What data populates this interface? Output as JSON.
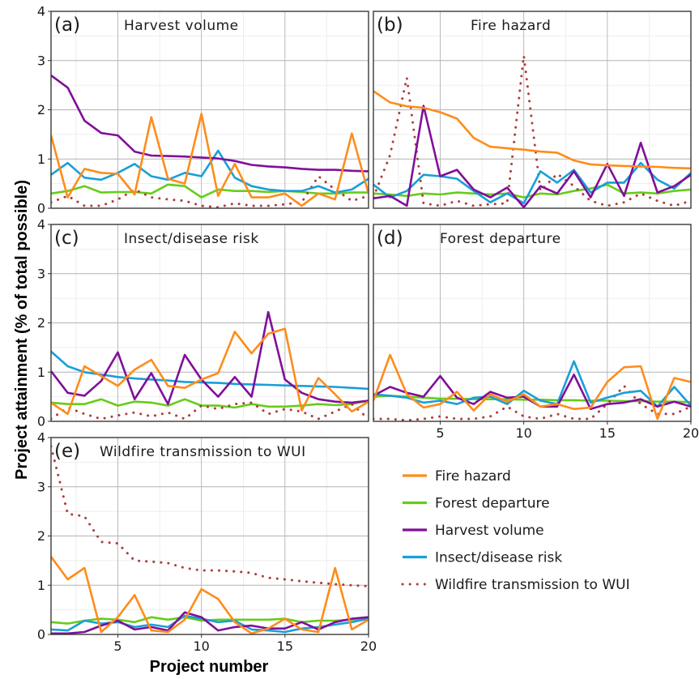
{
  "chart_data": {
    "type": "line",
    "xlabel": "Project number",
    "ylabel": "Project attainment (% of total possible)",
    "xlim": [
      1,
      20
    ],
    "ylim": [
      0,
      4
    ],
    "x_ticks": [
      5,
      10,
      15,
      20
    ],
    "y_ticks": [
      0,
      1,
      2,
      3,
      4
    ],
    "x": [
      1,
      2,
      3,
      4,
      5,
      6,
      7,
      8,
      9,
      10,
      11,
      12,
      13,
      14,
      15,
      16,
      17,
      18,
      19,
      20
    ],
    "colors": {
      "Fire hazard": "#ff8c1a",
      "Forest departure": "#66cc1a",
      "Harvest volume": "#800f99",
      "Insect/disease risk": "#1a9ed9",
      "Wildfire transmission to WUI": "#b03a3a"
    },
    "legend": [
      {
        "name": "Fire hazard",
        "style": "solid"
      },
      {
        "name": "Forest departure",
        "style": "solid"
      },
      {
        "name": "Harvest volume",
        "style": "solid"
      },
      {
        "name": "Insect/disease risk",
        "style": "solid"
      },
      {
        "name": "Wildfire transmission to WUI",
        "style": "dotted"
      }
    ],
    "panels": [
      {
        "label": "(a)",
        "title": "Harvest volume",
        "show_x_ticks": false,
        "show_y_ticks": true,
        "series": [
          {
            "name": "Fire hazard",
            "values": [
              1.48,
              0.22,
              0.8,
              0.72,
              0.7,
              0.28,
              1.85,
              0.6,
              0.5,
              1.92,
              0.25,
              0.9,
              0.22,
              0.22,
              0.3,
              0.05,
              0.3,
              0.18,
              1.52,
              0.3
            ]
          },
          {
            "name": "Forest departure",
            "values": [
              0.3,
              0.35,
              0.45,
              0.32,
              0.33,
              0.33,
              0.3,
              0.48,
              0.45,
              0.22,
              0.38,
              0.35,
              0.35,
              0.33,
              0.35,
              0.33,
              0.3,
              0.3,
              0.32,
              0.32
            ]
          },
          {
            "name": "Harvest volume",
            "values": [
              2.7,
              2.45,
              1.78,
              1.53,
              1.48,
              1.15,
              1.07,
              1.06,
              1.05,
              1.03,
              1.01,
              0.96,
              0.88,
              0.85,
              0.83,
              0.8,
              0.78,
              0.78,
              0.76,
              0.75
            ]
          },
          {
            "name": "Insect/disease risk",
            "values": [
              0.68,
              0.92,
              0.62,
              0.58,
              0.72,
              0.9,
              0.65,
              0.58,
              0.72,
              0.65,
              1.17,
              0.62,
              0.45,
              0.38,
              0.35,
              0.35,
              0.45,
              0.32,
              0.38,
              0.6
            ]
          },
          {
            "name": "Wildfire transmission to WUI",
            "values": [
              0.12,
              0.25,
              0.05,
              0.05,
              0.18,
              0.38,
              0.22,
              0.18,
              0.15,
              0.05,
              0.02,
              0.1,
              0.05,
              0.05,
              0.08,
              0.12,
              0.65,
              0.38,
              0.15,
              0.25
            ]
          }
        ]
      },
      {
        "label": "(b)",
        "title": "Fire hazard",
        "show_x_ticks": false,
        "show_y_ticks": false,
        "series": [
          {
            "name": "Fire hazard",
            "values": [
              2.38,
              2.15,
              2.07,
              2.04,
              1.95,
              1.82,
              1.43,
              1.25,
              1.22,
              1.19,
              1.15,
              1.13,
              0.97,
              0.89,
              0.87,
              0.86,
              0.85,
              0.84,
              0.82,
              0.81
            ]
          },
          {
            "name": "Forest departure",
            "values": [
              0.3,
              0.28,
              0.25,
              0.3,
              0.28,
              0.32,
              0.3,
              0.28,
              0.3,
              0.22,
              0.3,
              0.28,
              0.35,
              0.4,
              0.48,
              0.3,
              0.32,
              0.3,
              0.35,
              0.38
            ]
          },
          {
            "name": "Harvest volume",
            "values": [
              0.2,
              0.25,
              0.05,
              2.08,
              0.65,
              0.78,
              0.38,
              0.22,
              0.42,
              0.02,
              0.45,
              0.3,
              0.75,
              0.22,
              0.9,
              0.25,
              1.33,
              0.32,
              0.45,
              0.68
            ]
          },
          {
            "name": "Insect/disease risk",
            "values": [
              0.48,
              0.22,
              0.35,
              0.68,
              0.65,
              0.6,
              0.35,
              0.12,
              0.3,
              0.1,
              0.75,
              0.52,
              0.78,
              0.32,
              0.52,
              0.52,
              0.92,
              0.58,
              0.4,
              0.72
            ]
          },
          {
            "name": "Wildfire transmission to WUI",
            "values": [
              0.22,
              1.08,
              2.65,
              0.1,
              0.05,
              0.15,
              0.05,
              0.08,
              0.1,
              3.1,
              0.35,
              0.7,
              0.45,
              0.15,
              0.05,
              0.12,
              0.3,
              0.15,
              0.05,
              0.15
            ]
          }
        ]
      },
      {
        "label": "(c)",
        "title": "Insect/disease risk",
        "show_x_ticks": false,
        "show_y_ticks": true,
        "series": [
          {
            "name": "Fire hazard",
            "values": [
              0.38,
              0.15,
              1.12,
              0.92,
              0.72,
              1.05,
              1.25,
              0.72,
              0.68,
              0.85,
              0.98,
              1.82,
              1.38,
              1.78,
              1.88,
              0.22,
              0.88,
              0.55,
              0.2,
              0.4
            ]
          },
          {
            "name": "Forest departure",
            "values": [
              0.38,
              0.35,
              0.35,
              0.45,
              0.32,
              0.4,
              0.38,
              0.32,
              0.45,
              0.32,
              0.32,
              0.28,
              0.35,
              0.3,
              0.3,
              0.32,
              0.35,
              0.33,
              0.35,
              0.42
            ]
          },
          {
            "name": "Harvest volume",
            "values": [
              1.02,
              0.58,
              0.52,
              0.82,
              1.4,
              0.45,
              0.98,
              0.35,
              1.35,
              0.85,
              0.5,
              0.9,
              0.5,
              2.22,
              0.85,
              0.58,
              0.45,
              0.4,
              0.38,
              0.42
            ]
          },
          {
            "name": "Insect/disease risk",
            "values": [
              1.42,
              1.12,
              1.0,
              0.95,
              0.9,
              0.87,
              0.85,
              0.83,
              0.8,
              0.79,
              0.78,
              0.76,
              0.75,
              0.74,
              0.73,
              0.72,
              0.71,
              0.7,
              0.68,
              0.66
            ]
          },
          {
            "name": "Wildfire transmission to WUI",
            "values": [
              0.05,
              0.28,
              0.15,
              0.05,
              0.12,
              0.18,
              0.1,
              0.18,
              0.05,
              0.32,
              0.25,
              0.35,
              0.38,
              0.15,
              0.25,
              0.2,
              0.05,
              0.2,
              0.35,
              0.05
            ]
          }
        ]
      },
      {
        "label": "(d)",
        "title": "Forest departure",
        "show_x_ticks": true,
        "show_y_ticks": false,
        "series": [
          {
            "name": "Fire hazard",
            "values": [
              0.42,
              1.35,
              0.55,
              0.28,
              0.35,
              0.6,
              0.22,
              0.55,
              0.4,
              0.55,
              0.3,
              0.35,
              0.25,
              0.28,
              0.8,
              1.1,
              1.12,
              0.05,
              0.88,
              0.8
            ]
          },
          {
            "name": "Forest departure",
            "values": [
              0.5,
              0.52,
              0.5,
              0.48,
              0.46,
              0.46,
              0.45,
              0.45,
              0.45,
              0.44,
              0.44,
              0.43,
              0.43,
              0.42,
              0.42,
              0.41,
              0.41,
              0.4,
              0.4,
              0.39
            ]
          },
          {
            "name": "Harvest volume",
            "values": [
              0.52,
              0.7,
              0.58,
              0.5,
              0.92,
              0.48,
              0.35,
              0.6,
              0.48,
              0.5,
              0.3,
              0.3,
              0.95,
              0.25,
              0.35,
              0.38,
              0.45,
              0.3,
              0.4,
              0.3
            ]
          },
          {
            "name": "Insect/disease risk",
            "values": [
              0.55,
              0.52,
              0.48,
              0.38,
              0.42,
              0.35,
              0.48,
              0.5,
              0.35,
              0.62,
              0.42,
              0.35,
              1.22,
              0.38,
              0.48,
              0.58,
              0.62,
              0.3,
              0.7,
              0.32
            ]
          },
          {
            "name": "Wildfire transmission to WUI",
            "values": [
              0.05,
              0.05,
              0.02,
              0.05,
              0.1,
              0.05,
              0.05,
              0.1,
              0.3,
              0.1,
              0.05,
              0.15,
              0.05,
              0.05,
              0.35,
              0.72,
              0.35,
              0.15,
              0.15,
              0.3
            ]
          }
        ]
      },
      {
        "label": "(e)",
        "title": "Wildfire transmission to WUI",
        "show_x_ticks": true,
        "show_y_ticks": true,
        "series": [
          {
            "name": "Fire hazard",
            "values": [
              1.58,
              1.12,
              1.35,
              0.05,
              0.35,
              0.8,
              0.08,
              0.05,
              0.3,
              0.92,
              0.72,
              0.25,
              0.02,
              0.12,
              0.32,
              0.1,
              0.05,
              1.35,
              0.1,
              0.3
            ]
          },
          {
            "name": "Forest departure",
            "values": [
              0.25,
              0.22,
              0.28,
              0.32,
              0.3,
              0.25,
              0.35,
              0.3,
              0.35,
              0.28,
              0.3,
              0.3,
              0.3,
              0.3,
              0.32,
              0.25,
              0.28,
              0.28,
              0.3,
              0.35
            ]
          },
          {
            "name": "Harvest volume",
            "values": [
              0.02,
              0.02,
              0.05,
              0.18,
              0.28,
              0.1,
              0.15,
              0.08,
              0.45,
              0.35,
              0.08,
              0.15,
              0.18,
              0.12,
              0.12,
              0.25,
              0.1,
              0.25,
              0.32,
              0.35
            ]
          },
          {
            "name": "Insect/disease risk",
            "values": [
              0.1,
              0.08,
              0.28,
              0.22,
              0.25,
              0.15,
              0.2,
              0.15,
              0.38,
              0.32,
              0.25,
              0.28,
              0.1,
              0.08,
              0.05,
              0.12,
              0.15,
              0.2,
              0.25,
              0.32
            ]
          },
          {
            "name": "Wildfire transmission to WUI",
            "values": [
              3.82,
              2.45,
              2.4,
              1.88,
              1.85,
              1.5,
              1.48,
              1.45,
              1.35,
              1.3,
              1.3,
              1.28,
              1.25,
              1.15,
              1.12,
              1.08,
              1.05,
              1.02,
              1.0,
              0.98
            ]
          }
        ]
      }
    ]
  }
}
